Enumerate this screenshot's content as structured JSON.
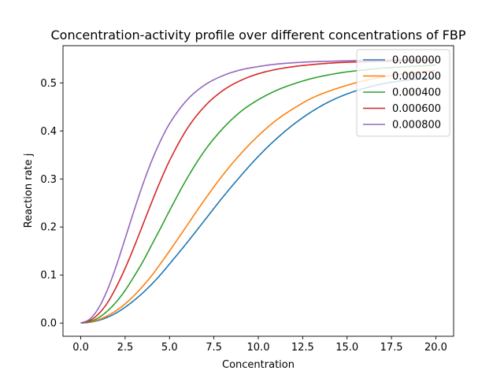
{
  "chart_data": {
    "type": "line",
    "title": "Concentration-activity profile over different concentrations of FBP",
    "xlabel": "Concentration",
    "ylabel": "Reaction rate j",
    "xlim": [
      -1.0,
      21.0
    ],
    "ylim": [
      -0.0275,
      0.5775
    ],
    "x_ticks": [
      0.0,
      2.5,
      5.0,
      7.5,
      10.0,
      12.5,
      15.0,
      17.5,
      20.0
    ],
    "x_tick_labels": [
      "0.0",
      "2.5",
      "5.0",
      "7.5",
      "10.0",
      "12.5",
      "15.0",
      "17.5",
      "20.0"
    ],
    "y_ticks": [
      0.0,
      0.1,
      0.2,
      0.3,
      0.4,
      0.5
    ],
    "y_tick_labels": [
      "0.0",
      "0.1",
      "0.2",
      "0.3",
      "0.4",
      "0.5"
    ],
    "legend_position": "top-right",
    "grid": false,
    "x": [
      0,
      0.5,
      1,
      1.5,
      2,
      2.5,
      3,
      3.5,
      4,
      4.5,
      5,
      6,
      7,
      8,
      9,
      10,
      11,
      12,
      13,
      14,
      15,
      16,
      17,
      18,
      19,
      20
    ],
    "series": [
      {
        "name": "0.000000",
        "color": "#1f77b4",
        "values": [
          0.0,
          0.0015,
          0.0055,
          0.012,
          0.021,
          0.033,
          0.047,
          0.063,
          0.081,
          0.101,
          0.123,
          0.168,
          0.215,
          0.262,
          0.306,
          0.347,
          0.383,
          0.414,
          0.44,
          0.461,
          0.477,
          0.489,
          0.498,
          0.504,
          0.508,
          0.512
        ]
      },
      {
        "name": "0.000200",
        "color": "#ff7f0e",
        "values": [
          0.0,
          0.002,
          0.007,
          0.015,
          0.026,
          0.04,
          0.057,
          0.077,
          0.099,
          0.124,
          0.15,
          0.204,
          0.258,
          0.308,
          0.352,
          0.39,
          0.422,
          0.447,
          0.468,
          0.483,
          0.495,
          0.505,
          0.512,
          0.518,
          0.522,
          0.526
        ]
      },
      {
        "name": "0.000400",
        "color": "#2ca02c",
        "values": [
          0.0,
          0.003,
          0.011,
          0.025,
          0.044,
          0.068,
          0.097,
          0.128,
          0.163,
          0.198,
          0.234,
          0.302,
          0.36,
          0.405,
          0.44,
          0.465,
          0.484,
          0.498,
          0.509,
          0.517,
          0.523,
          0.527,
          0.531,
          0.533,
          0.535,
          0.537
        ]
      },
      {
        "name": "0.000600",
        "color": "#d62728",
        "values": [
          0.0,
          0.005,
          0.019,
          0.042,
          0.075,
          0.114,
          0.158,
          0.205,
          0.252,
          0.297,
          0.338,
          0.405,
          0.452,
          0.484,
          0.505,
          0.519,
          0.528,
          0.534,
          0.538,
          0.541,
          0.543,
          0.544,
          0.545,
          0.546,
          0.546,
          0.547
        ]
      },
      {
        "name": "0.000800",
        "color": "#9467bd",
        "values": [
          0.0,
          0.008,
          0.031,
          0.069,
          0.119,
          0.176,
          0.234,
          0.289,
          0.338,
          0.38,
          0.415,
          0.465,
          0.496,
          0.515,
          0.527,
          0.534,
          0.539,
          0.542,
          0.544,
          0.545,
          0.546,
          0.547,
          0.547,
          0.548,
          0.548,
          0.548
        ]
      }
    ]
  }
}
